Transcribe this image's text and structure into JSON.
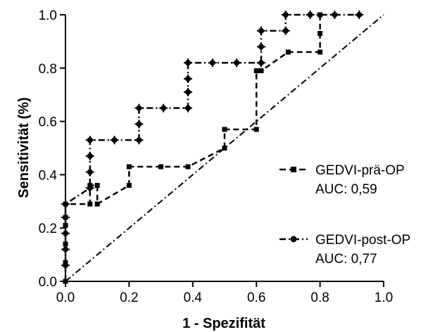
{
  "chart_data": {
    "type": "line",
    "xlabel": "1 - Spezifität",
    "ylabel": "Sensitivität (%)",
    "xlim": [
      0.0,
      1.0
    ],
    "ylim": [
      0.0,
      1.0
    ],
    "xticks": [
      "0.0",
      "0.2",
      "0.4",
      "0.6",
      "0.8",
      "1.0"
    ],
    "yticks": [
      "0.0",
      "0.2",
      "0.4",
      "0.6",
      "0.8",
      "1.0"
    ],
    "grid": false,
    "legend_position": "right",
    "reference_line": {
      "style": "dash-dot",
      "x": [
        0,
        1
      ],
      "y": [
        0,
        1
      ]
    },
    "series": [
      {
        "name": "GEDVI-prä-OP",
        "auc_label": "AUC: 0,59",
        "marker": "square",
        "line_style": "dashed",
        "x": [
          0.0,
          0.0,
          0.0,
          0.0,
          0.0,
          0.0,
          0.077,
          0.077,
          0.1,
          0.1,
          0.2,
          0.2,
          0.3,
          0.385,
          0.5,
          0.5,
          0.6,
          0.6,
          0.615,
          0.7,
          0.8,
          0.8,
          0.8
        ],
        "y": [
          0.0,
          0.07,
          0.14,
          0.21,
          0.24,
          0.29,
          0.29,
          0.36,
          0.36,
          0.29,
          0.36,
          0.43,
          0.43,
          0.43,
          0.5,
          0.57,
          0.57,
          0.79,
          0.79,
          0.86,
          0.86,
          0.93,
          1.0
        ]
      },
      {
        "name": "GEDVI-post-OP",
        "auc_label": "AUC: 0,77",
        "marker": "diamond",
        "line_style": "dash-dot",
        "x": [
          0.0,
          0.0,
          0.0,
          0.0,
          0.0,
          0.077,
          0.077,
          0.077,
          0.077,
          0.154,
          0.231,
          0.231,
          0.231,
          0.308,
          0.385,
          0.385,
          0.385,
          0.385,
          0.462,
          0.538,
          0.615,
          0.615,
          0.615,
          0.692,
          0.692,
          0.769,
          0.846,
          0.923
        ],
        "y": [
          0.06,
          0.12,
          0.18,
          0.24,
          0.29,
          0.35,
          0.41,
          0.47,
          0.53,
          0.53,
          0.53,
          0.59,
          0.65,
          0.65,
          0.65,
          0.71,
          0.76,
          0.82,
          0.82,
          0.82,
          0.82,
          0.88,
          0.94,
          0.94,
          1.0,
          1.0,
          1.0,
          1.0
        ]
      }
    ]
  }
}
